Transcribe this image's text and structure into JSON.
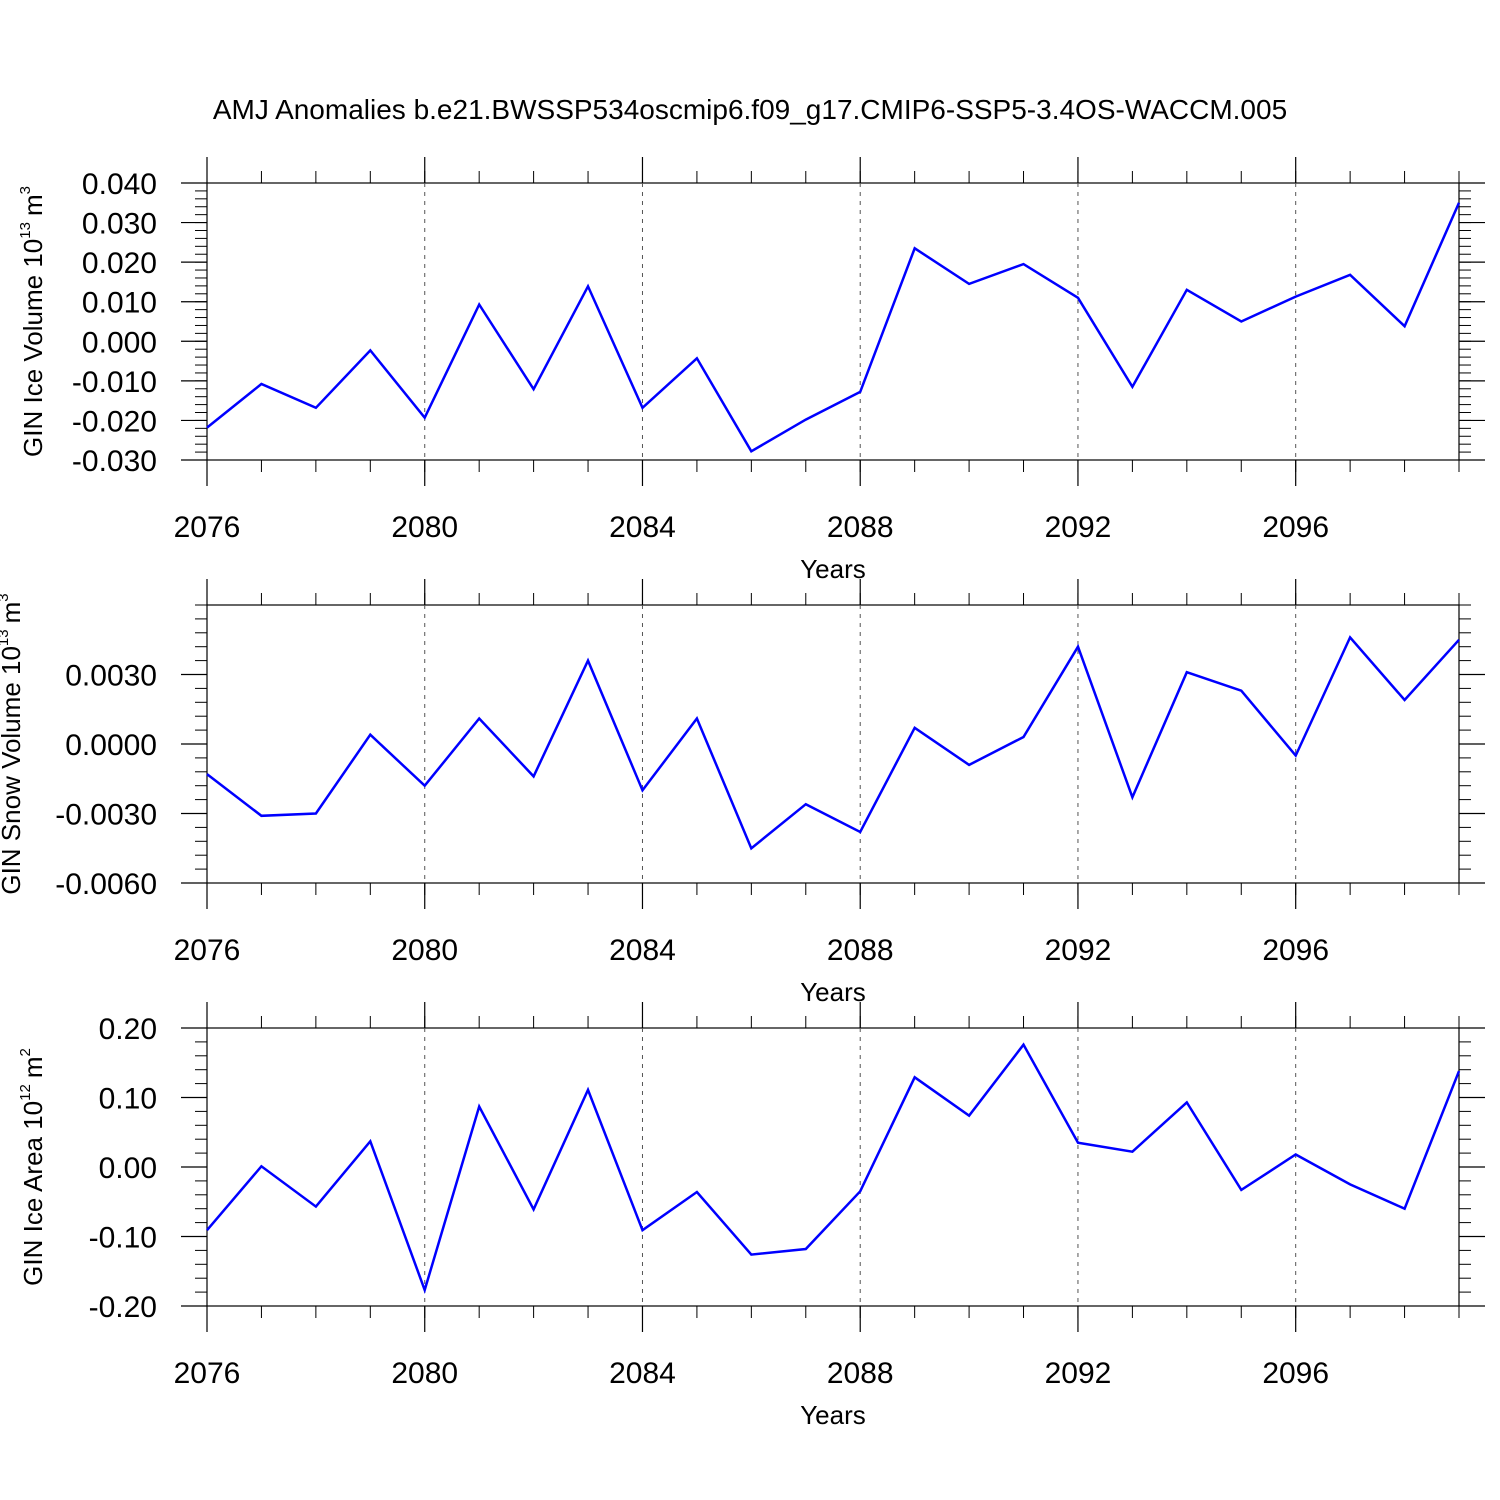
{
  "title": "AMJ Anomalies b.e21.BWSSP534oscmip6.f09_g17.CMIP6-SSP5-3.4OS-WACCM.005",
  "line_color": "#0000ff",
  "chart_data": [
    {
      "type": "line",
      "xlabel": "Years",
      "ylabel": {
        "text": "GIN Ice Volume 10",
        "exp": "13",
        "unit": "m",
        "unit_exp": "3"
      },
      "xlim": [
        2076,
        2099
      ],
      "ylim": [
        -0.03,
        0.04
      ],
      "x_ticks": [
        2076,
        2080,
        2084,
        2088,
        2092,
        2096
      ],
      "y_ticks": [
        -0.03,
        -0.02,
        -0.01,
        0.0,
        0.01,
        0.02,
        0.03,
        0.04
      ],
      "y_tick_labels": [
        "-0.030",
        "-0.020",
        "-0.010",
        "0.000",
        "0.010",
        "0.020",
        "0.030",
        "0.040"
      ],
      "grid": "vertical dashed at major x ticks",
      "x": [
        2076,
        2077,
        2078,
        2079,
        2080,
        2081,
        2082,
        2083,
        2084,
        2085,
        2086,
        2087,
        2088,
        2089,
        2090,
        2091,
        2092,
        2093,
        2094,
        2095,
        2096,
        2097,
        2098,
        2099
      ],
      "values": [
        -0.0218,
        -0.0108,
        -0.0168,
        -0.0023,
        -0.0193,
        0.0093,
        -0.0121,
        0.0139,
        -0.0168,
        -0.0043,
        -0.0278,
        -0.0198,
        -0.0128,
        0.0235,
        0.0145,
        0.0195,
        0.011,
        -0.0115,
        0.013,
        0.005,
        0.0113,
        0.0168,
        0.0038,
        0.035
      ]
    },
    {
      "type": "line",
      "xlabel": "Years",
      "ylabel": {
        "text": "GIN Snow Volume 10",
        "exp": "13",
        "unit": "m",
        "unit_exp": "3"
      },
      "xlim": [
        2076,
        2099
      ],
      "ylim": [
        -0.006,
        0.006
      ],
      "x_ticks": [
        2076,
        2080,
        2084,
        2088,
        2092,
        2096
      ],
      "y_ticks": [
        -0.006,
        -0.003,
        0.0,
        0.003
      ],
      "y_tick_labels": [
        "-0.0060",
        "-0.0030",
        "0.0000",
        "0.0030"
      ],
      "grid": "vertical dashed at major x ticks",
      "x": [
        2076,
        2077,
        2078,
        2079,
        2080,
        2081,
        2082,
        2083,
        2084,
        2085,
        2086,
        2087,
        2088,
        2089,
        2090,
        2091,
        2092,
        2093,
        2094,
        2095,
        2096,
        2097,
        2098,
        2099
      ],
      "values": [
        -0.0013,
        -0.0031,
        -0.003,
        0.0004,
        -0.0018,
        0.0011,
        -0.0014,
        0.0036,
        -0.002,
        0.0011,
        -0.0045,
        -0.0026,
        -0.0038,
        0.0007,
        -0.0009,
        0.0003,
        0.0042,
        -0.0023,
        0.0031,
        0.0023,
        -0.0005,
        0.0046,
        0.0019,
        0.0045
      ]
    },
    {
      "type": "line",
      "xlabel": "Years",
      "ylabel": {
        "text": "GIN Ice Area 10",
        "exp": "12",
        "unit": "m",
        "unit_exp": "2"
      },
      "xlim": [
        2076,
        2099
      ],
      "ylim": [
        -0.2,
        0.2
      ],
      "x_ticks": [
        2076,
        2080,
        2084,
        2088,
        2092,
        2096
      ],
      "y_ticks": [
        -0.2,
        -0.1,
        0.0,
        0.1,
        0.2
      ],
      "y_tick_labels": [
        "-0.20",
        "-0.10",
        "0.00",
        "0.10",
        "0.20"
      ],
      "grid": "vertical dashed at major x ticks",
      "x": [
        2076,
        2077,
        2078,
        2079,
        2080,
        2081,
        2082,
        2083,
        2084,
        2085,
        2086,
        2087,
        2088,
        2089,
        2090,
        2091,
        2092,
        2093,
        2094,
        2095,
        2096,
        2097,
        2098,
        2099
      ],
      "values": [
        -0.091,
        0.001,
        -0.057,
        0.037,
        -0.177,
        0.087,
        -0.061,
        0.111,
        -0.091,
        -0.036,
        -0.126,
        -0.118,
        -0.035,
        0.129,
        0.074,
        0.176,
        0.035,
        0.022,
        0.093,
        -0.033,
        0.018,
        -0.025,
        -0.06,
        0.138
      ]
    }
  ]
}
